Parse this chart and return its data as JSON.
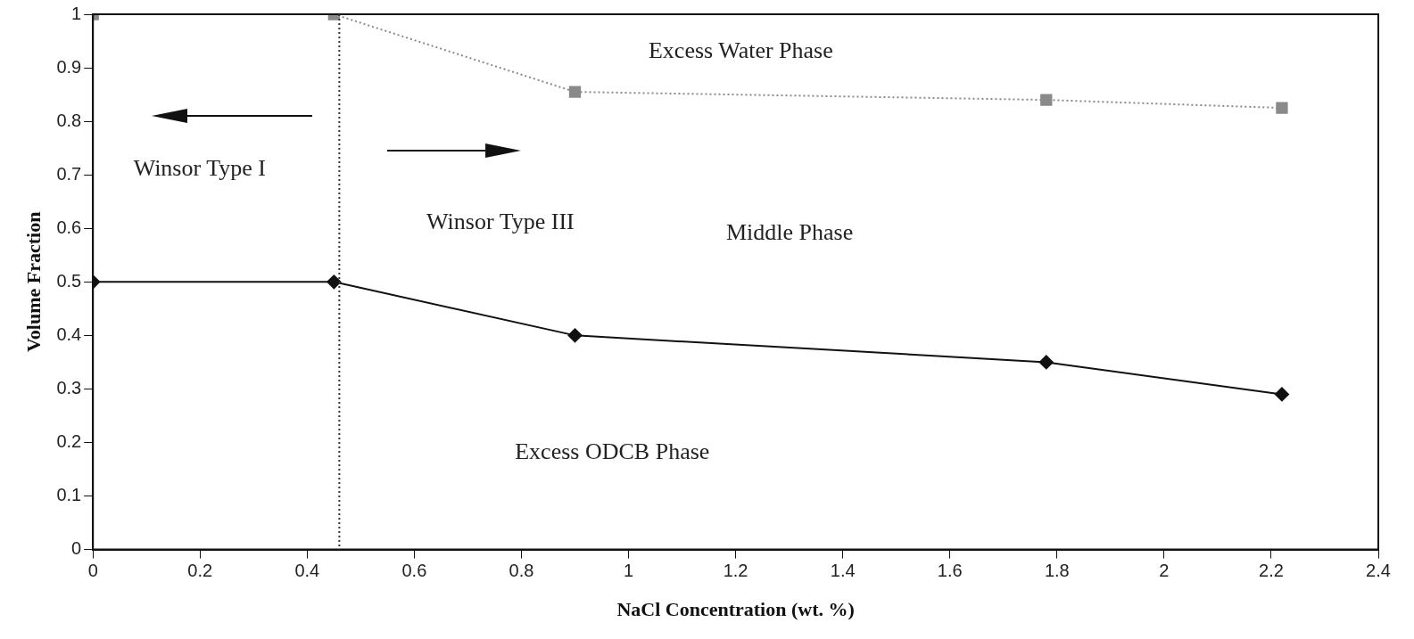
{
  "chart_data": {
    "type": "line",
    "xlabel": "NaCl Concentration (wt. %)",
    "ylabel": "Volume Fraction",
    "xlim": [
      0,
      2.4
    ],
    "xticks": [
      0,
      0.2,
      0.4,
      0.6,
      0.8,
      1,
      1.2,
      1.4,
      1.6,
      1.8,
      2,
      2.2,
      2.4
    ],
    "ylim": [
      0,
      1
    ],
    "yticks": [
      0,
      0.1,
      0.2,
      0.3,
      0.4,
      0.5,
      0.6,
      0.7,
      0.8,
      0.9,
      1
    ],
    "grid": false,
    "legend": false,
    "series": [
      {
        "color": "#8a8a8a",
        "marker": "square",
        "line_style": "dotted",
        "x": [
          0,
          0.45,
          0.9,
          1.78,
          2.22
        ],
        "values": [
          1,
          1,
          0.855,
          0.84,
          0.825
        ]
      },
      {
        "color": "#111111",
        "marker": "diamond",
        "line_style": "solid",
        "x": [
          0,
          0.45,
          0.9,
          1.78,
          2.22
        ],
        "values": [
          0.5,
          0.5,
          0.4,
          0.35,
          0.29
        ]
      }
    ],
    "ref_lines": [
      {
        "axis": "x",
        "value": 0.46,
        "color": "#333333",
        "line_style": "dotted"
      }
    ],
    "annotations": [
      "Excess Water Phase",
      "Winsor Type I",
      "Winsor Type III",
      "Middle Phase",
      "Excess ODCB Phase"
    ]
  }
}
